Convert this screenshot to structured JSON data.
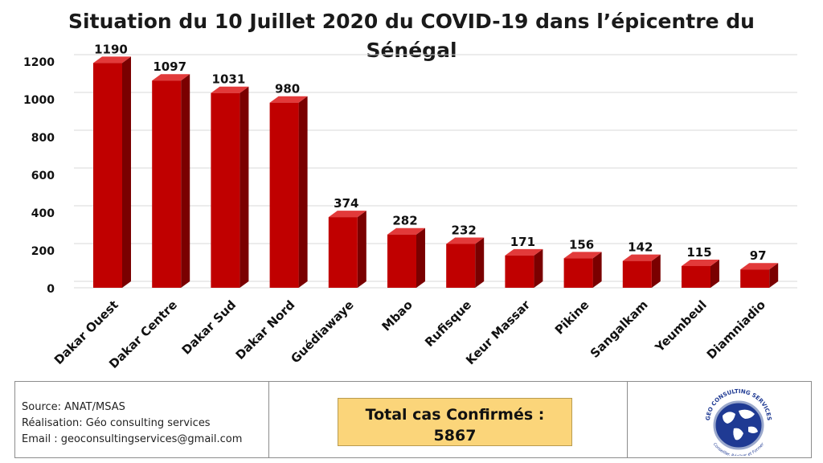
{
  "chart_data": {
    "type": "bar",
    "title": "Situation du 10 Juillet 2020 du COVID-19 dans l’épicentre du Sénégal",
    "title_lines": [
      "Situation du 10 Juillet 2020 du COVID-19 dans l’épicentre du",
      "Sénégal"
    ],
    "categories": [
      "Dakar Ouest",
      "Dakar Centre",
      "Dakar Sud",
      "Dakar Nord",
      "Guédiawaye",
      "Mbao",
      "Rufisque",
      "Keur Massar",
      "Pikine",
      "Sangalkam",
      "Yeumbeul",
      "Diamniadio"
    ],
    "values": [
      1190,
      1097,
      1031,
      980,
      374,
      282,
      232,
      171,
      156,
      142,
      115,
      97
    ],
    "yticks": [
      0,
      200,
      400,
      600,
      800,
      1000,
      1200
    ],
    "ylim": [
      0,
      1200
    ],
    "xlabel": "",
    "ylabel": "",
    "grid": true,
    "bar_color": "#c00000"
  },
  "footer": {
    "source": "Source: ANAT/MSAS",
    "realisation": "Réalisation: Géo consulting services",
    "email": "Email : geoconsultingservices@gmail.com",
    "total_label": "Total cas Confirmés :",
    "total_value": "5867"
  },
  "logo": {
    "top_text": "GEO CONSULTING SERVICES",
    "bottom_text": "Conseiller, Réaliser et Former"
  }
}
